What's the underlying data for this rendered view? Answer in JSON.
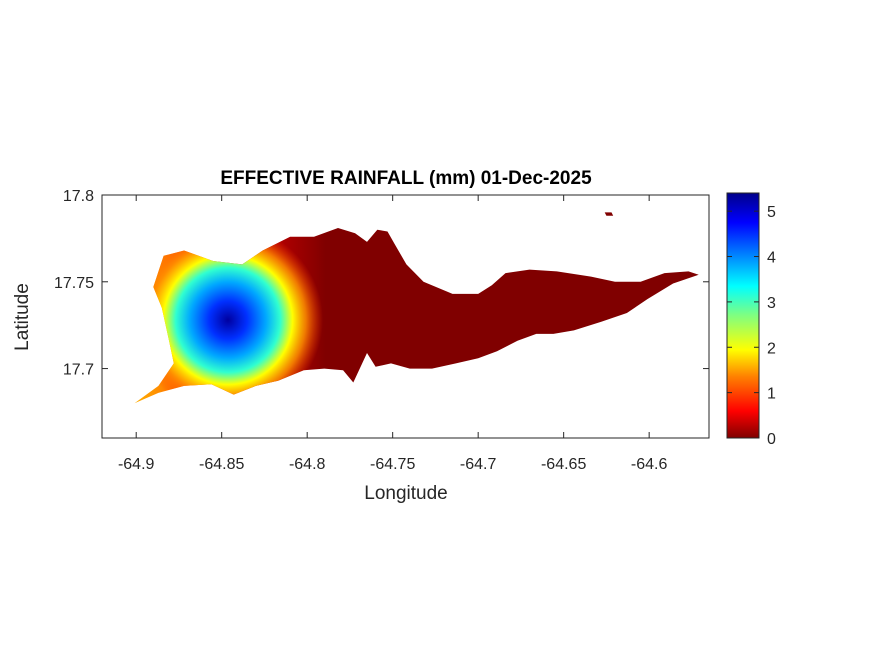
{
  "chart_data": {
    "type": "heatmap",
    "title": "EFFECTIVE RAINFALL (mm) 01-Dec-2025",
    "xlabel": "Longitude",
    "ylabel": "Latitude",
    "xlim": [
      -64.92,
      -64.565
    ],
    "ylim": [
      17.66,
      17.8
    ],
    "xticks": [
      -64.9,
      -64.85,
      -64.8,
      -64.75,
      -64.7,
      -64.65,
      -64.6
    ],
    "xtick_labels": [
      "-64.9",
      "-64.85",
      "-64.8",
      "-64.75",
      "-64.7",
      "-64.65",
      "-64.6"
    ],
    "yticks": [
      17.7,
      17.75,
      17.8
    ],
    "ytick_labels": [
      "17.7",
      "17.75",
      "17.8"
    ],
    "colorbar": {
      "range": [
        0,
        5.4
      ],
      "ticks": [
        0,
        1,
        2,
        3,
        4,
        5
      ],
      "tick_labels": [
        "0",
        "1",
        "2",
        "3",
        "4",
        "5"
      ],
      "colormap": "jet"
    },
    "rainfall_peak": {
      "lon": -64.845,
      "lat": 17.725,
      "value_mm": 5.4
    },
    "rainfall_east_of_-64.78_mm": 0,
    "land_outline": [
      [
        -64.901,
        17.68
      ],
      [
        -64.887,
        17.69
      ],
      [
        -64.878,
        17.703
      ],
      [
        -64.881,
        17.717
      ],
      [
        -64.885,
        17.735
      ],
      [
        -64.89,
        17.747
      ],
      [
        -64.884,
        17.765
      ],
      [
        -64.872,
        17.768
      ],
      [
        -64.855,
        17.762
      ],
      [
        -64.838,
        17.76
      ],
      [
        -64.826,
        17.768
      ],
      [
        -64.81,
        17.776
      ],
      [
        -64.796,
        17.776
      ],
      [
        -64.782,
        17.781
      ],
      [
        -64.772,
        17.778
      ],
      [
        -64.765,
        17.773
      ],
      [
        -64.759,
        17.78
      ],
      [
        -64.753,
        17.779
      ],
      [
        -64.749,
        17.772
      ],
      [
        -64.742,
        17.76
      ],
      [
        -64.732,
        17.75
      ],
      [
        -64.715,
        17.743
      ],
      [
        -64.7,
        17.743
      ],
      [
        -64.692,
        17.748
      ],
      [
        -64.684,
        17.755
      ],
      [
        -64.67,
        17.757
      ],
      [
        -64.654,
        17.756
      ],
      [
        -64.634,
        17.753
      ],
      [
        -64.62,
        17.75
      ],
      [
        -64.605,
        17.75
      ],
      [
        -64.591,
        17.755
      ],
      [
        -64.577,
        17.756
      ],
      [
        -64.571,
        17.754
      ],
      [
        -64.586,
        17.749
      ],
      [
        -64.601,
        17.74
      ],
      [
        -64.613,
        17.732
      ],
      [
        -64.628,
        17.727
      ],
      [
        -64.644,
        17.722
      ],
      [
        -64.656,
        17.72
      ],
      [
        -64.666,
        17.72
      ],
      [
        -64.677,
        17.716
      ],
      [
        -64.689,
        17.71
      ],
      [
        -64.7,
        17.706
      ],
      [
        -64.713,
        17.703
      ],
      [
        -64.727,
        17.7
      ],
      [
        -64.74,
        17.7
      ],
      [
        -64.751,
        17.703
      ],
      [
        -64.76,
        17.701
      ],
      [
        -64.765,
        17.709
      ],
      [
        -64.773,
        17.692
      ],
      [
        -64.779,
        17.699
      ],
      [
        -64.79,
        17.7
      ],
      [
        -64.802,
        17.699
      ],
      [
        -64.817,
        17.693
      ],
      [
        -64.83,
        17.69
      ],
      [
        -64.843,
        17.685
      ],
      [
        -64.856,
        17.691
      ],
      [
        -64.872,
        17.69
      ],
      [
        -64.887,
        17.686
      ]
    ],
    "islets": [
      [
        [
          -64.626,
          17.79
        ],
        [
          -64.622,
          17.79
        ],
        [
          -64.621,
          17.788
        ],
        [
          -64.625,
          17.788
        ]
      ]
    ]
  }
}
